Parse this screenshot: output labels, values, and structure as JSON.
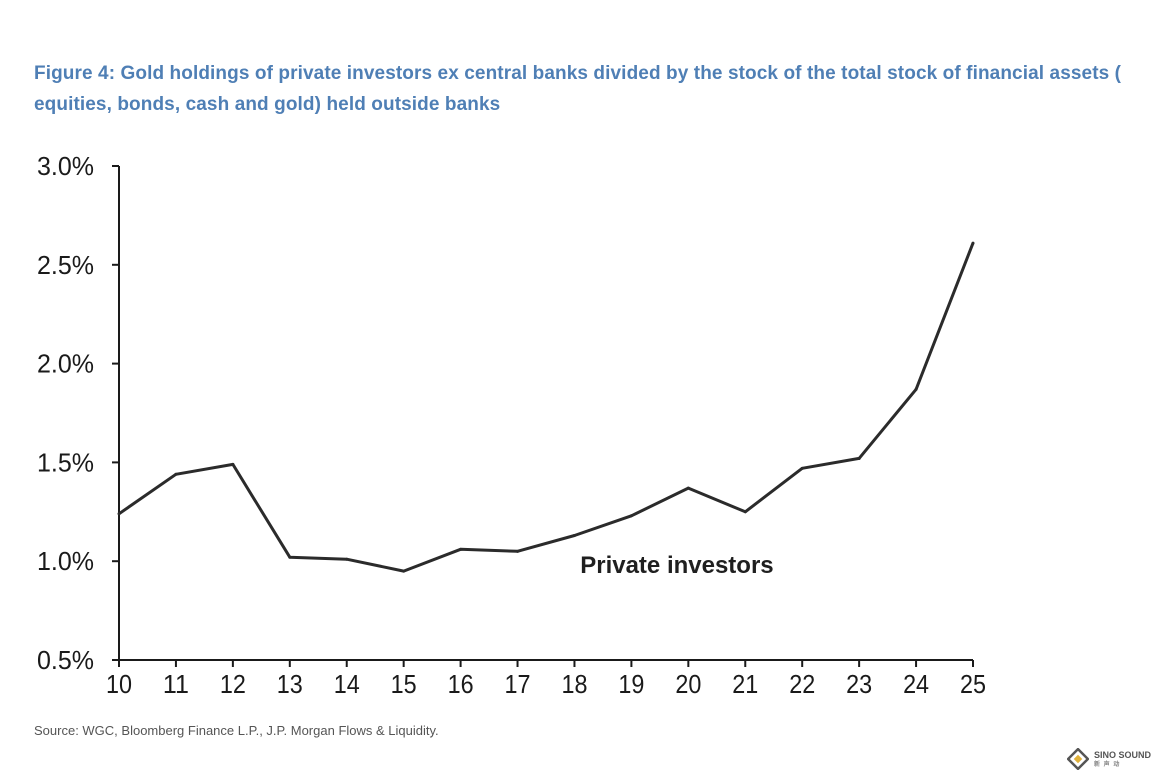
{
  "title": "Figure 4: Gold holdings of private investors ex central banks divided by the stock of the total stock of financial assets ( equities, bonds, cash and gold) held outside banks",
  "source": "Source: WGC, Bloomberg Finance L.P., J.P. Morgan Flows & Liquidity.",
  "logo": {
    "text": "SINO SOUND",
    "sub": "新 声 动"
  },
  "colors": {
    "title": "#4f7fb5",
    "line": "#2b2b2b",
    "axis": "#1a1a1a"
  },
  "chart_data": {
    "type": "line",
    "title": "Figure 4: Gold holdings of private investors ex central banks divided by the stock of the total stock of financial assets ( equities, bonds, cash and gold) held outside banks",
    "xlabel": "",
    "ylabel": "",
    "x": [
      10,
      11,
      12,
      13,
      14,
      15,
      16,
      17,
      18,
      19,
      20,
      21,
      22,
      23,
      24,
      25
    ],
    "x_tick_labels": [
      "10",
      "11",
      "12",
      "13",
      "14",
      "15",
      "16",
      "17",
      "18",
      "19",
      "20",
      "21",
      "22",
      "23",
      "24",
      "25"
    ],
    "y_tick_values": [
      0.5,
      1.0,
      1.5,
      2.0,
      2.5,
      3.0
    ],
    "y_tick_labels": [
      "0.5%",
      "1.0%",
      "1.5%",
      "2.0%",
      "2.5%",
      "3.0%"
    ],
    "ylim": [
      0.5,
      3.0
    ],
    "xlim": [
      10,
      25
    ],
    "grid": false,
    "series": [
      {
        "name": "Private investors",
        "values": [
          1.24,
          1.44,
          1.49,
          1.02,
          1.01,
          0.95,
          1.06,
          1.05,
          1.13,
          1.23,
          1.37,
          1.25,
          1.47,
          1.52,
          1.87,
          2.61
        ]
      }
    ],
    "annotations": [
      {
        "text": "Private investors",
        "x": 19.8,
        "y": 0.98
      }
    ]
  }
}
